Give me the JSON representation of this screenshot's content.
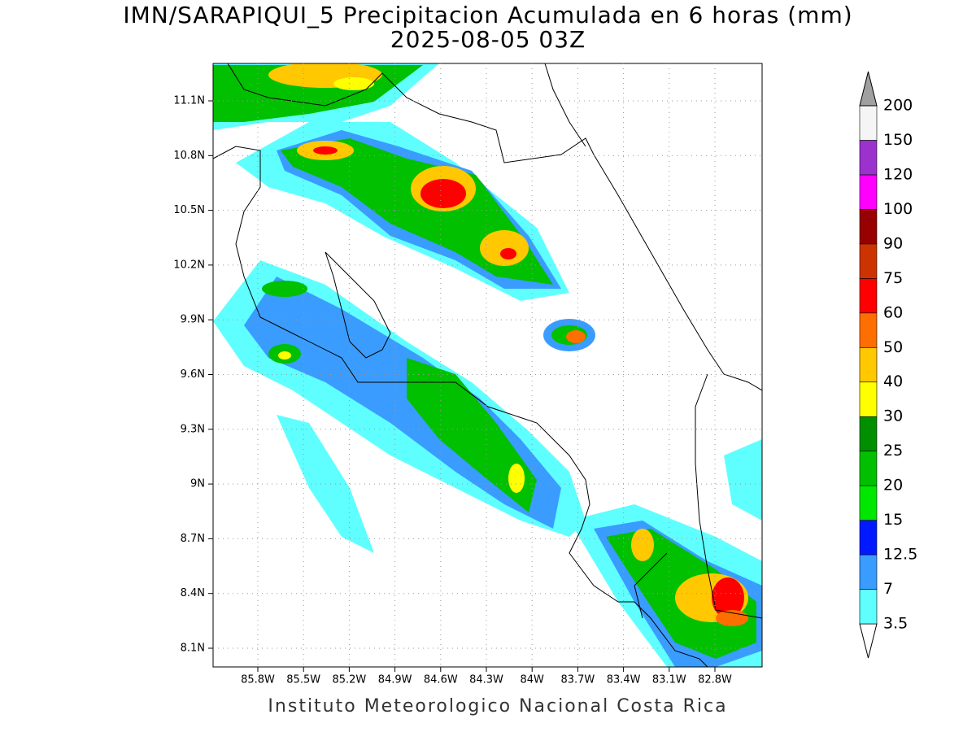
{
  "title": "IMN/SARAPIQUI_5 Precipitacion Acumulada en 6 horas (mm)",
  "subtitle": "2025-08-05 03Z",
  "footer": "Instituto Meteorologico Nacional Costa Rica",
  "map": {
    "lat_ticks": [
      "11.1N",
      "10.8N",
      "10.5N",
      "10.2N",
      "9.9N",
      "9.6N",
      "9.3N",
      "9N",
      "8.7N",
      "8.4N",
      "8.1N"
    ],
    "lon_ticks": [
      "85.8W",
      "85.5W",
      "85.2W",
      "84.9W",
      "84.6W",
      "84.3W",
      "84W",
      "83.7W",
      "83.4W",
      "83.1W",
      "82.8W"
    ]
  },
  "colorbar": {
    "levels": [
      3.5,
      7,
      12.5,
      15,
      20,
      25,
      30,
      40,
      50,
      60,
      75,
      90,
      100,
      120,
      150,
      200
    ],
    "colors": [
      "#ffffff",
      "#5fffff",
      "#3a9cff",
      "#0019ff",
      "#00e800",
      "#00c000",
      "#008f00",
      "#ffff00",
      "#ffc800",
      "#ff6e00",
      "#ff0000",
      "#cd3300",
      "#980000",
      "#ff00ff",
      "#9b32cd",
      "#f5f5f5",
      "#a0a0a0"
    ]
  }
}
